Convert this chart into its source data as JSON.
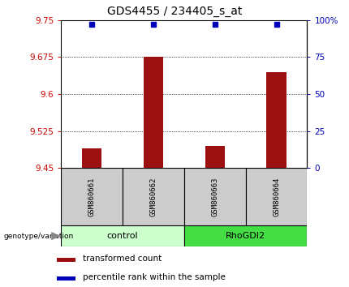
{
  "title": "GDS4455 / 234405_s_at",
  "samples": [
    "GSM860661",
    "GSM860662",
    "GSM860663",
    "GSM860664"
  ],
  "bar_values": [
    9.49,
    9.676,
    9.495,
    9.645
  ],
  "bar_baseline": 9.45,
  "percentile_values": [
    97,
    97,
    97,
    97
  ],
  "ylim_left": [
    9.45,
    9.75
  ],
  "ylim_right": [
    0,
    100
  ],
  "yticks_left": [
    9.45,
    9.525,
    9.6,
    9.675,
    9.75
  ],
  "yticks_right": [
    0,
    25,
    50,
    75,
    100
  ],
  "ytick_labels_right": [
    "0",
    "25",
    "50",
    "75",
    "100%"
  ],
  "grid_lines": [
    9.525,
    9.6,
    9.675
  ],
  "bar_color": "#9B1010",
  "dot_color": "#0000BB",
  "group_labels": [
    "control",
    "RhoGDI2"
  ],
  "group_light_color": "#CCFFCC",
  "group_dark_color": "#44DD44",
  "sample_box_color": "#CCCCCC",
  "legend_red_label": "transformed count",
  "legend_blue_label": "percentile rank within the sample",
  "genotype_label": "genotype/variation",
  "title_fontsize": 10,
  "tick_fontsize": 7.5,
  "sample_fontsize": 6.5,
  "group_fontsize": 8,
  "legend_fontsize": 7.5
}
